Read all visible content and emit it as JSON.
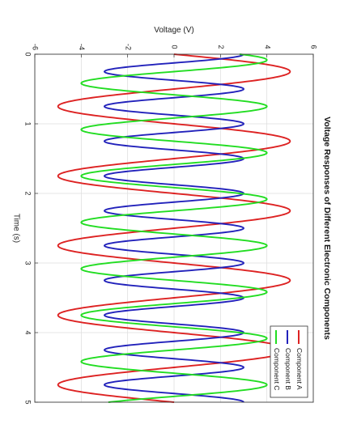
{
  "chart_data": {
    "type": "line",
    "title": "Voltage Responses of Different Electronic Components",
    "xlabel": "Time (s)",
    "ylabel": "Voltage (V)",
    "xlim": [
      0,
      5
    ],
    "ylim": [
      -6,
      6
    ],
    "xticks": [
      0,
      1,
      2,
      3,
      4,
      5
    ],
    "yticks": [
      -6,
      -4,
      -2,
      0,
      2,
      4,
      6
    ],
    "grid": true,
    "legend": "bottom-right",
    "series": [
      {
        "name": "Component A",
        "color": "#dd2222",
        "amplitude": 5,
        "frequency": 1,
        "phase": 0
      },
      {
        "name": "Component B",
        "color": "#2222bb",
        "amplitude": 3,
        "frequency": 2,
        "phase": 1.5708
      },
      {
        "name": "Component C",
        "color": "#22dd22",
        "amplitude": 4,
        "frequency": 1.5,
        "phase": 0.7854
      }
    ]
  }
}
